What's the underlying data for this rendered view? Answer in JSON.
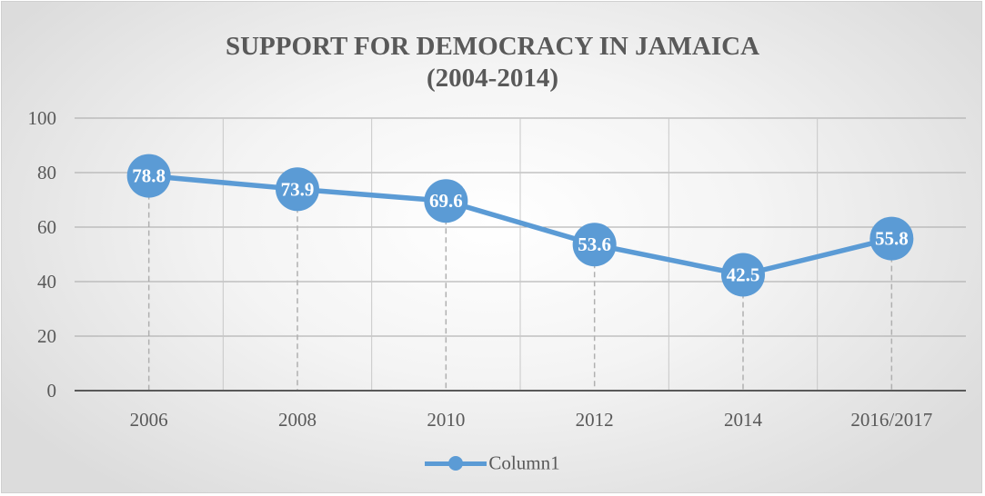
{
  "chart_data": {
    "type": "line",
    "title_line1": "SUPPORT FOR DEMOCRACY IN JAMAICA",
    "title_line2": "(2004-2014)",
    "categories": [
      "2006",
      "2008",
      "2010",
      "2012",
      "2014",
      "2016/2017"
    ],
    "series": [
      {
        "name": "Column1",
        "values": [
          78.8,
          73.9,
          69.6,
          53.6,
          42.5,
          55.8
        ],
        "color": "#5b9bd5"
      }
    ],
    "y_ticks": [
      0,
      20,
      40,
      60,
      80,
      100
    ],
    "ylim": [
      0,
      100
    ],
    "data_labels": [
      "78.8",
      "73.9",
      "69.6",
      "53.6",
      "42.5",
      "55.8"
    ],
    "grid": true,
    "legend_position": "bottom"
  }
}
